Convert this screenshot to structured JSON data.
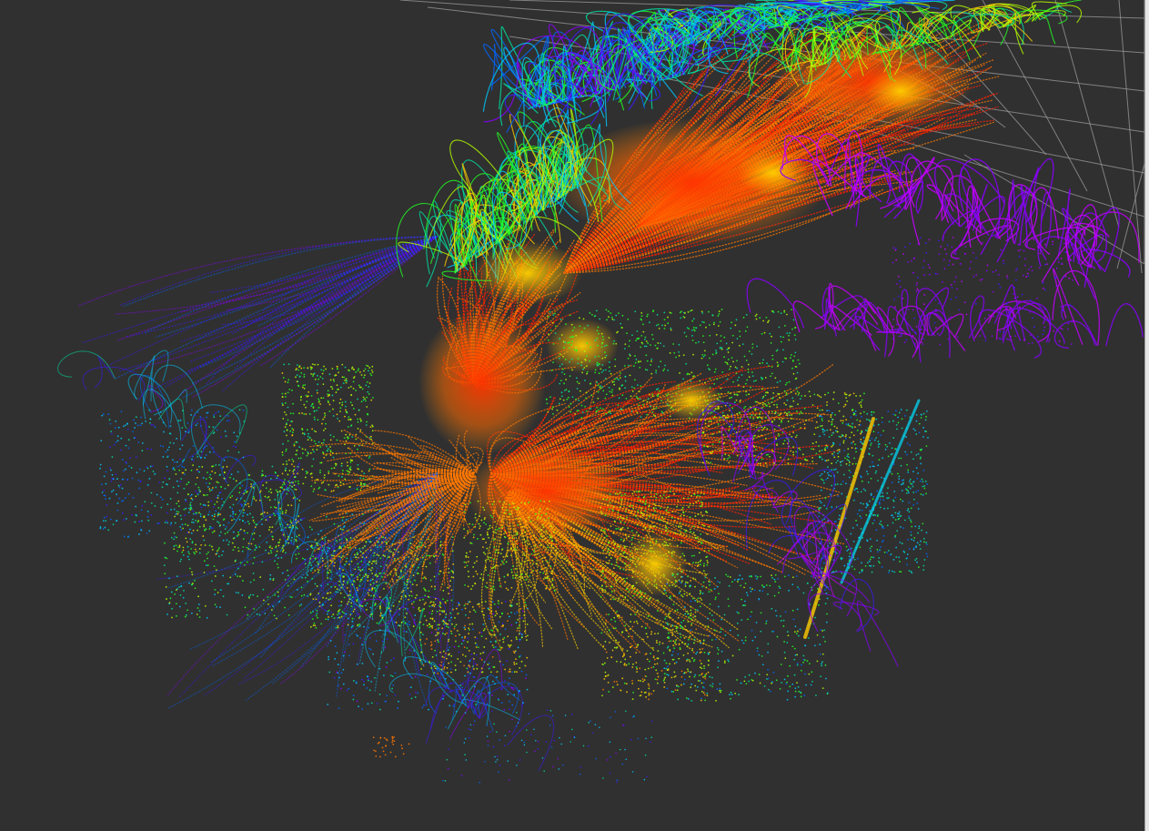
{
  "viewport": {
    "background_color": "#303030",
    "grid_color": "#a0a0a0",
    "colormap": [
      "#ff2200",
      "#ff7700",
      "#ffcc00",
      "#b4ff00",
      "#22ff22",
      "#00e0a0",
      "#00c8ff",
      "#0066ff",
      "#3a1aff",
      "#8a00ff",
      "#c400ff"
    ],
    "elements": {
      "grid_icon": "grid-plane-icon",
      "point_cloud_icon": "point-cloud-icon"
    }
  }
}
